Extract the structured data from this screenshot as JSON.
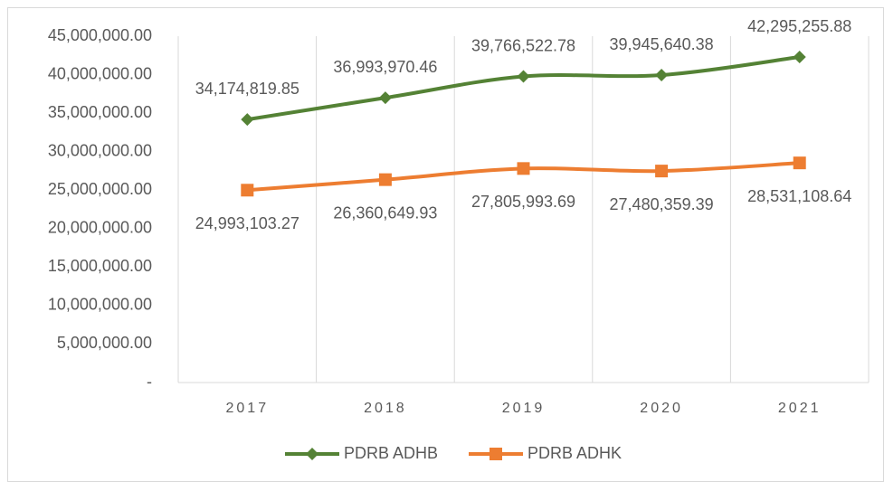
{
  "chart_data": {
    "type": "line",
    "categories": [
      "2017",
      "2018",
      "2019",
      "2020",
      "2021"
    ],
    "series": [
      {
        "name": "PDRB ADHB",
        "color": "#548235",
        "marker": "diamond",
        "values": [
          34174819.85,
          36993970.46,
          39766522.78,
          39945640.38,
          42295255.88
        ],
        "value_labels": [
          "34,174,819.85",
          "36,993,970.46",
          "39,766,522.78",
          "39,945,640.38",
          "42,295,255.88"
        ]
      },
      {
        "name": "PDRB ADHK",
        "color": "#ed7d31",
        "marker": "square",
        "values": [
          24993103.27,
          26360649.93,
          27805993.69,
          27480359.39,
          28531108.64
        ],
        "value_labels": [
          "24,993,103.27",
          "26,360,649.93",
          "27,805,993.69",
          "27,480,359.39",
          "28,531,108.64"
        ]
      }
    ],
    "ylim": [
      0,
      45000000
    ],
    "yticks": [
      {
        "value": 0,
        "label": "-"
      },
      {
        "value": 5000000,
        "label": "5,000,000.00"
      },
      {
        "value": 10000000,
        "label": "10,000,000.00"
      },
      {
        "value": 15000000,
        "label": "15,000,000.00"
      },
      {
        "value": 20000000,
        "label": "20,000,000.00"
      },
      {
        "value": 25000000,
        "label": "25,000,000.00"
      },
      {
        "value": 30000000,
        "label": "30,000,000.00"
      },
      {
        "value": 35000000,
        "label": "35,000,000.00"
      },
      {
        "value": 40000000,
        "label": "40,000,000.00"
      },
      {
        "value": 45000000,
        "label": "45,000,000.00"
      }
    ],
    "grid": "vertical",
    "smooth": true,
    "legend": "bottom"
  }
}
